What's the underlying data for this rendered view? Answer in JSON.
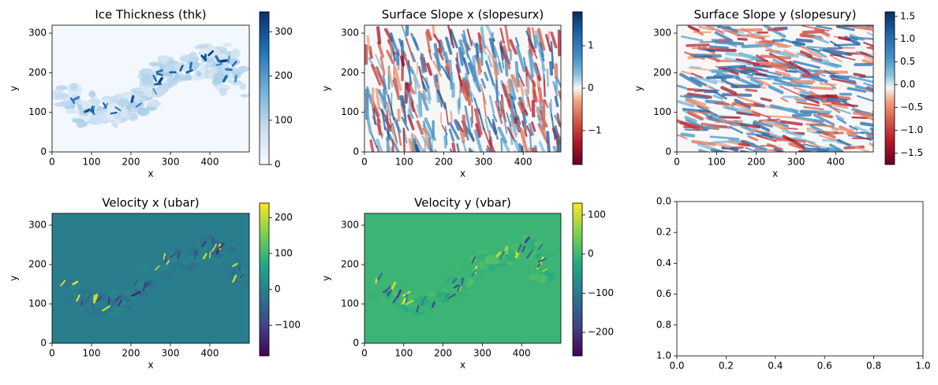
{
  "chart_data": [
    {
      "type": "heatmap",
      "title": "Ice Thickness (thk)",
      "xlabel": "x",
      "ylabel": "y",
      "x_ticks": [
        "0",
        "100",
        "200",
        "300",
        "400"
      ],
      "y_ticks": [
        "0",
        "100",
        "200",
        "300"
      ],
      "xlim": [
        0,
        500
      ],
      "ylim": [
        320,
        0
      ],
      "colormap": "Blues",
      "colorbar": {
        "range": [
          0,
          345
        ],
        "ticks": [
          "0",
          "100",
          "200",
          "300"
        ]
      }
    },
    {
      "type": "heatmap",
      "title": "Surface Slope x (slopesurx)",
      "xlabel": "x",
      "ylabel": "y",
      "x_ticks": [
        "0",
        "100",
        "200",
        "300",
        "400"
      ],
      "y_ticks": [
        "0",
        "100",
        "200",
        "300"
      ],
      "xlim": [
        0,
        495
      ],
      "ylim": [
        320,
        0
      ],
      "colormap": "RdBu",
      "colorbar": {
        "range": [
          -1.8,
          1.8
        ],
        "ticks": [
          "1",
          "0",
          "−1"
        ]
      }
    },
    {
      "type": "heatmap",
      "title": "Surface Slope y (slopesury)",
      "xlabel": "x",
      "ylabel": "y",
      "x_ticks": [
        "0",
        "100",
        "200",
        "300",
        "400"
      ],
      "y_ticks": [
        "0",
        "100",
        "200",
        "300"
      ],
      "xlim": [
        0,
        495
      ],
      "ylim": [
        320,
        0
      ],
      "colormap": "RdBu",
      "colorbar": {
        "range": [
          -1.75,
          1.6
        ],
        "ticks": [
          "1.5",
          "1.0",
          "0.5",
          "0.0",
          "−0.5",
          "−1.0",
          "−1.5"
        ]
      }
    },
    {
      "type": "heatmap",
      "title": "Velocity x (ubar)",
      "xlabel": "x",
      "ylabel": "y",
      "x_ticks": [
        "0",
        "100",
        "200",
        "300",
        "400"
      ],
      "y_ticks": [
        "0",
        "100",
        "200",
        "300"
      ],
      "xlim": [
        0,
        500
      ],
      "ylim": [
        330,
        0
      ],
      "colormap": "viridis",
      "colorbar": {
        "range": [
          -185,
          240
        ],
        "ticks": [
          "200",
          "100",
          "0",
          "−100"
        ]
      }
    },
    {
      "type": "heatmap",
      "title": "Velocity y (vbar)",
      "xlabel": "x",
      "ylabel": "y",
      "x_ticks": [
        "0",
        "100",
        "200",
        "300",
        "400"
      ],
      "y_ticks": [
        "0",
        "100",
        "200",
        "300"
      ],
      "xlim": [
        0,
        500
      ],
      "ylim": [
        330,
        0
      ],
      "colormap": "viridis",
      "colorbar": {
        "range": [
          -260,
          130
        ],
        "ticks": [
          "100",
          "0",
          "−100",
          "−200"
        ]
      }
    },
    {
      "type": "line",
      "title": "",
      "x_ticks": [
        "0.0",
        "0.2",
        "0.4",
        "0.6",
        "0.8",
        "1.0"
      ],
      "y_ticks": [
        "0.0",
        "0.2",
        "0.4",
        "0.6",
        "0.8",
        "1.0"
      ],
      "xlim": [
        0,
        1
      ],
      "ylim": [
        0,
        1
      ],
      "series": []
    }
  ]
}
